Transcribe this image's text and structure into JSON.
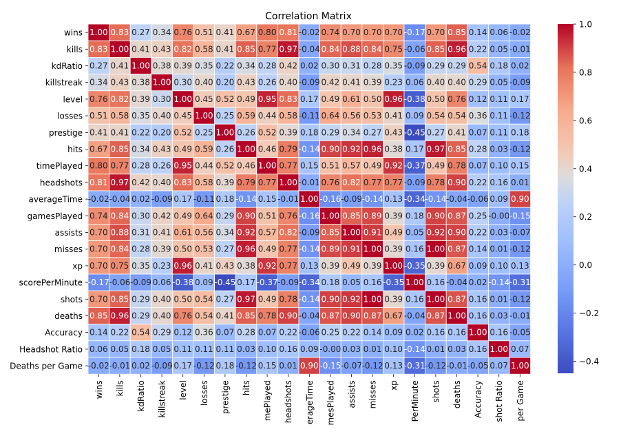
{
  "chart_data": {
    "type": "heatmap",
    "title": "Correlation Matrix",
    "row_labels": [
      "wins",
      "kills",
      "kdRatio",
      "killstreak",
      "level",
      "losses",
      "prestige",
      "hits",
      "timePlayed",
      "headshots",
      "averageTime",
      "gamesPlayed",
      "assists",
      "misses",
      "xp",
      "scorePerMinute",
      "shots",
      "deaths",
      "Accuracy",
      "Headshot Ratio",
      "Deaths per Game"
    ],
    "column_labels_visible": [
      "wins",
      "kills",
      "kdRatio",
      "killstreak",
      "level",
      "losses",
      "prestige",
      "hits",
      "mePlayed",
      "headshots",
      "erageTime",
      "mesPlayed",
      "assists",
      "misses",
      "xp",
      "PerMinute",
      "shots",
      "deaths",
      "Accuracy",
      "shot Ratio",
      "per Game"
    ],
    "cell_text": [
      [
        "1.00",
        "0.83",
        "0.27",
        "0.34",
        "0.76",
        "0.51",
        "0.41",
        "0.67",
        "0.80",
        "0.81",
        "-0.02",
        "0.74",
        "0.70",
        "0.70",
        "0.70",
        "-0.17",
        "0.70",
        "0.85",
        "0.14",
        "0.06",
        "-0.02"
      ],
      [
        "0.83",
        "1.00",
        "0.41",
        "0.43",
        "0.82",
        "0.58",
        "0.41",
        "0.85",
        "0.77",
        "0.97",
        "-0.04",
        "0.84",
        "0.88",
        "0.84",
        "0.75",
        "-0.06",
        "0.85",
        "0.96",
        "0.22",
        "0.05",
        "-0.01"
      ],
      [
        "0.27",
        "0.41",
        "1.00",
        "0.38",
        "0.39",
        "0.35",
        "0.22",
        "0.34",
        "0.28",
        "0.42",
        "0.02",
        "0.30",
        "0.31",
        "0.28",
        "0.35",
        "-0.09",
        "0.29",
        "0.29",
        "0.54",
        "0.18",
        "0.02"
      ],
      [
        "0.34",
        "0.43",
        "0.38",
        "1.00",
        "0.30",
        "0.40",
        "0.20",
        "0.43",
        "0.26",
        "0.40",
        "-0.09",
        "0.42",
        "0.41",
        "0.39",
        "0.23",
        "0.06",
        "0.40",
        "0.40",
        "0.29",
        "0.05",
        "-0.09"
      ],
      [
        "0.76",
        "0.82",
        "0.39",
        "0.30",
        "1.00",
        "0.45",
        "0.52",
        "0.49",
        "0.95",
        "0.83",
        "0.17",
        "0.49",
        "0.61",
        "0.50",
        "0.96",
        "-0.38",
        "0.50",
        "0.76",
        "0.12",
        "0.11",
        "0.17"
      ],
      [
        "0.51",
        "0.58",
        "0.35",
        "0.40",
        "0.45",
        "1.00",
        "0.25",
        "0.59",
        "0.44",
        "0.58",
        "-0.11",
        "0.64",
        "0.56",
        "0.53",
        "0.41",
        "0.09",
        "0.54",
        "0.54",
        "0.36",
        "0.11",
        "-0.12"
      ],
      [
        "0.41",
        "0.41",
        "0.22",
        "0.20",
        "0.52",
        "0.25",
        "1.00",
        "0.26",
        "0.52",
        "0.39",
        "0.18",
        "0.29",
        "0.34",
        "0.27",
        "0.43",
        "-0.45",
        "0.27",
        "0.41",
        "0.07",
        "0.11",
        "0.18"
      ],
      [
        "0.67",
        "0.85",
        "0.34",
        "0.43",
        "0.49",
        "0.59",
        "0.26",
        "1.00",
        "0.46",
        "0.79",
        "-0.14",
        "0.90",
        "0.92",
        "0.96",
        "0.38",
        "0.17",
        "0.97",
        "0.85",
        "0.28",
        "0.03",
        "-0.12"
      ],
      [
        "0.80",
        "0.77",
        "0.28",
        "0.26",
        "0.95",
        "0.44",
        "0.52",
        "0.46",
        "1.00",
        "0.77",
        "0.15",
        "0.51",
        "0.57",
        "0.49",
        "0.92",
        "-0.37",
        "0.49",
        "0.78",
        "0.07",
        "0.10",
        "0.15"
      ],
      [
        "0.81",
        "0.97",
        "0.42",
        "0.40",
        "0.83",
        "0.58",
        "0.39",
        "0.79",
        "0.77",
        "1.00",
        "-0.01",
        "0.76",
        "0.82",
        "0.77",
        "0.77",
        "-0.09",
        "0.78",
        "0.90",
        "0.22",
        "0.16",
        "0.01"
      ],
      [
        "-0.02",
        "-0.04",
        "0.02",
        "-0.09",
        "0.17",
        "-0.11",
        "0.18",
        "-0.14",
        "0.15",
        "-0.01",
        "1.00",
        "-0.16",
        "-0.09",
        "-0.14",
        "0.13",
        "-0.34",
        "-0.14",
        "-0.04",
        "-0.06",
        "0.09",
        "0.90"
      ],
      [
        "0.74",
        "0.84",
        "0.30",
        "0.42",
        "0.49",
        "0.64",
        "0.29",
        "0.90",
        "0.51",
        "0.76",
        "-0.16",
        "1.00",
        "0.85",
        "0.89",
        "0.39",
        "0.18",
        "0.90",
        "0.87",
        "0.25",
        "-0.00",
        "-0.15"
      ],
      [
        "0.70",
        "0.88",
        "0.31",
        "0.41",
        "0.61",
        "0.56",
        "0.34",
        "0.92",
        "0.57",
        "0.82",
        "-0.09",
        "0.85",
        "1.00",
        "0.91",
        "0.49",
        "0.05",
        "0.92",
        "0.90",
        "0.22",
        "0.03",
        "-0.07"
      ],
      [
        "0.70",
        "0.84",
        "0.28",
        "0.39",
        "0.50",
        "0.53",
        "0.27",
        "0.96",
        "0.49",
        "0.77",
        "-0.14",
        "0.89",
        "0.91",
        "1.00",
        "0.39",
        "0.16",
        "1.00",
        "0.87",
        "0.14",
        "0.01",
        "-0.12"
      ],
      [
        "0.70",
        "0.75",
        "0.35",
        "0.23",
        "0.96",
        "0.41",
        "0.43",
        "0.38",
        "0.92",
        "0.77",
        "0.13",
        "0.39",
        "0.49",
        "0.39",
        "1.00",
        "-0.35",
        "0.39",
        "0.67",
        "0.09",
        "0.10",
        "0.13"
      ],
      [
        "-0.17",
        "-0.06",
        "-0.09",
        "0.06",
        "-0.38",
        "0.09",
        "-0.45",
        "0.17",
        "-0.37",
        "-0.09",
        "-0.34",
        "0.18",
        "0.05",
        "0.16",
        "-0.35",
        "1.00",
        "0.16",
        "-0.04",
        "0.02",
        "-0.14",
        "-0.31"
      ],
      [
        "0.70",
        "0.85",
        "0.29",
        "0.40",
        "0.50",
        "0.54",
        "0.27",
        "0.97",
        "0.49",
        "0.78",
        "-0.14",
        "0.90",
        "0.92",
        "1.00",
        "0.39",
        "0.16",
        "1.00",
        "0.87",
        "0.16",
        "0.01",
        "-0.12"
      ],
      [
        "0.85",
        "0.96",
        "0.29",
        "0.40",
        "0.76",
        "0.54",
        "0.41",
        "0.85",
        "0.78",
        "0.90",
        "-0.04",
        "0.87",
        "0.90",
        "0.87",
        "0.67",
        "-0.04",
        "0.87",
        "1.00",
        "0.16",
        "0.03",
        "-0.01"
      ],
      [
        "0.14",
        "0.22",
        "0.54",
        "0.29",
        "0.12",
        "0.36",
        "0.07",
        "0.28",
        "0.07",
        "0.22",
        "-0.06",
        "0.25",
        "0.22",
        "0.14",
        "0.09",
        "0.02",
        "0.16",
        "0.16",
        "1.00",
        "0.16",
        "-0.05"
      ],
      [
        "0.06",
        "0.05",
        "0.18",
        "0.05",
        "0.11",
        "0.11",
        "0.11",
        "0.03",
        "0.10",
        "0.16",
        "0.09",
        "-0.00",
        "0.03",
        "0.01",
        "0.10",
        "-0.14",
        "0.01",
        "0.03",
        "0.16",
        "1.00",
        "0.07"
      ],
      [
        "-0.02",
        "-0.01",
        "0.02",
        "-0.09",
        "0.17",
        "-0.12",
        "0.18",
        "-0.12",
        "0.15",
        "0.01",
        "0.90",
        "-0.15",
        "-0.07",
        "-0.12",
        "0.13",
        "-0.31",
        "-0.12",
        "-0.01",
        "-0.05",
        "0.07",
        "1.00"
      ]
    ],
    "colorbar": {
      "colormap": "coolwarm",
      "range": [
        -0.45,
        1.0
      ],
      "ticks": [
        "1.0",
        "0.8",
        "0.6",
        "0.4",
        "0.2",
        "0.0",
        "−0.2",
        "−0.4"
      ],
      "tick_values": [
        1.0,
        0.8,
        0.6,
        0.4,
        0.2,
        0.0,
        -0.2,
        -0.4
      ]
    },
    "colors": {
      "low": "#3b4cc0",
      "mid": "#dddddd",
      "high": "#b40426",
      "cell_border": "#ffffff"
    }
  }
}
